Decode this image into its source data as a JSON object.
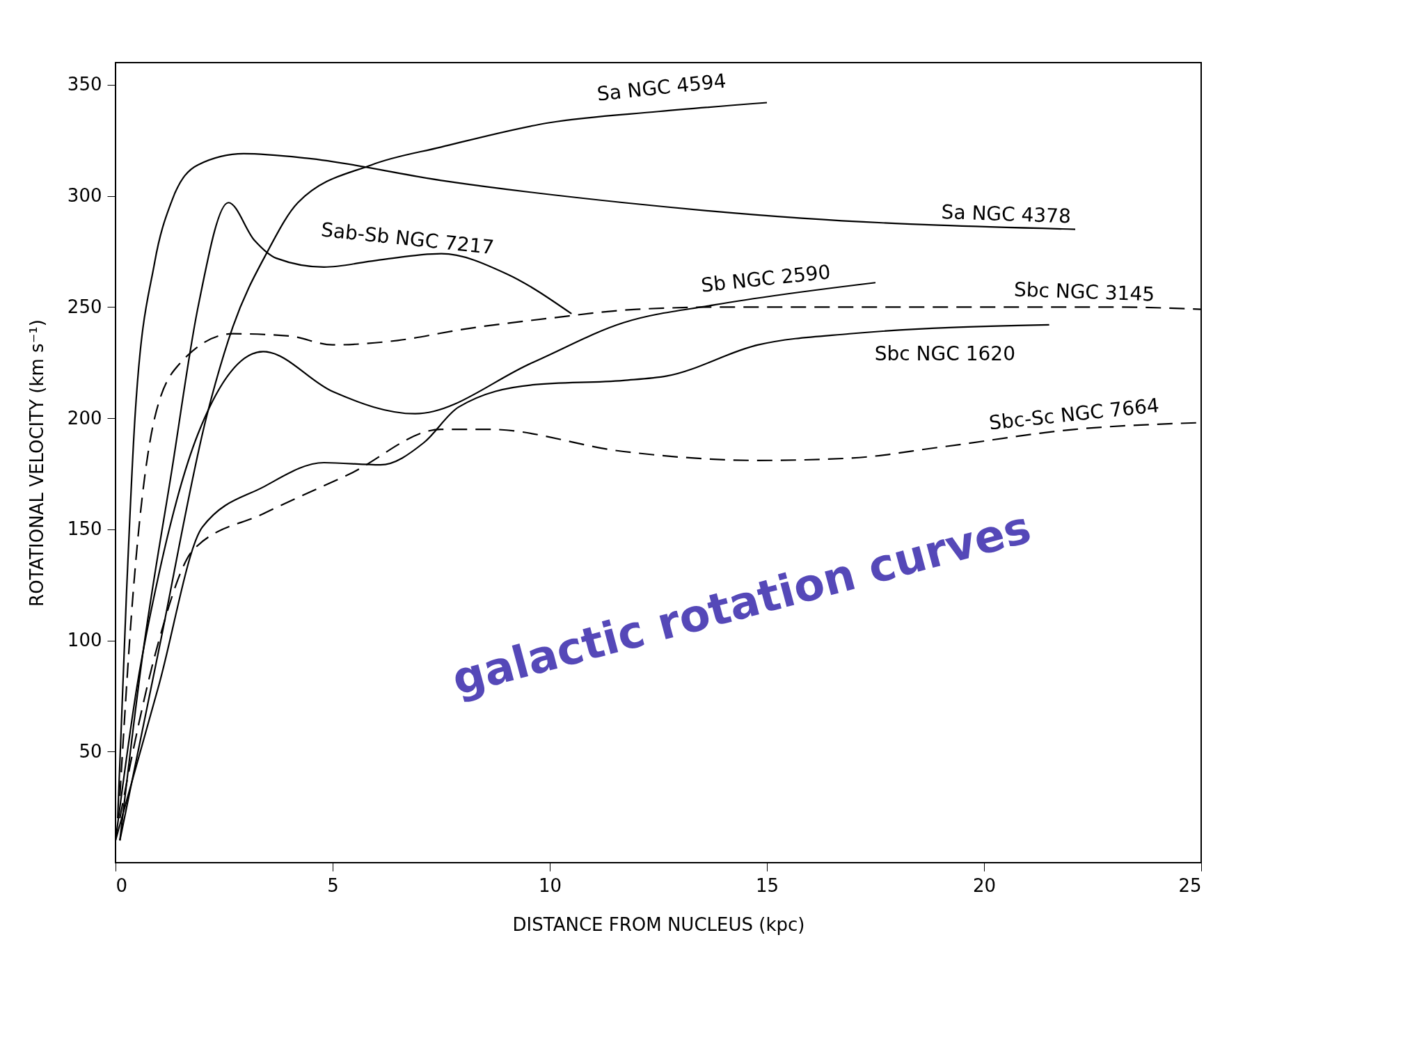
{
  "chart_data": {
    "type": "line",
    "xlabel": "DISTANCE  FROM NUCLEUS (kpc)",
    "ylabel": "ROTATIONAL VELOCITY (km s⁻¹)",
    "xlim": [
      0,
      25
    ],
    "ylim": [
      0,
      360
    ],
    "xticks": [
      0,
      5,
      10,
      15,
      20,
      25
    ],
    "yticks": [
      50,
      100,
      150,
      200,
      250,
      300,
      350
    ],
    "grid": false,
    "marker": "none",
    "series": [
      {
        "name": "Sa  NGC 4594",
        "color": "#000000",
        "line_style": "solid",
        "x": [
          0.1,
          1,
          2.1,
          2.7,
          3.5,
          4.2,
          5.9,
          7.5,
          10,
          12.5,
          15
        ],
        "values": [
          10,
          96,
          201,
          241,
          275,
          297,
          314,
          322,
          333,
          338,
          342
        ]
      },
      {
        "name": "Sa  NGC 4378",
        "color": "#000000",
        "line_style": "solid",
        "x": [
          0.05,
          0.25,
          0.45,
          0.9,
          1.3,
          1.9,
          2.95,
          4.4,
          7.5,
          11.7,
          15.8,
          22.1
        ],
        "values": [
          20,
          120,
          201,
          270,
          298,
          314,
          319,
          317,
          307,
          297,
          290,
          285
        ]
      },
      {
        "name": "Sab-Sb  NGC 7217",
        "color": "#000000",
        "line_style": "solid",
        "x": [
          0.1,
          0.6,
          1.3,
          1.9,
          2.6,
          3.2,
          3.7,
          4.8,
          6,
          7.5,
          9,
          10.5
        ],
        "values": [
          10,
          90,
          177,
          250,
          297,
          280,
          272,
          268,
          271,
          274,
          265,
          247
        ]
      },
      {
        "name": "Sb  NGC 2590",
        "color": "#000000",
        "line_style": "solid",
        "x": [
          0,
          0.5,
          1,
          1.9,
          3.4,
          5,
          6.9,
          9.6,
          11.7,
          13.8,
          17.5
        ],
        "values": [
          10,
          80,
          130,
          193,
          230,
          212,
          202,
          225,
          243,
          251,
          261
        ]
      },
      {
        "name": "Sbc  NGC 3145",
        "color": "#000000",
        "line_style": "dashed",
        "x": [
          0.1,
          0.4,
          0.9,
          1.5,
          2.7,
          4,
          5,
          6.5,
          8,
          10,
          12,
          14,
          17,
          20,
          23,
          25
        ],
        "values": [
          30,
          120,
          200,
          225,
          238,
          237,
          233,
          235,
          240,
          245,
          249,
          250,
          250,
          250,
          250,
          249
        ]
      },
      {
        "name": "Sbc  NGC 1620",
        "color": "#000000",
        "line_style": "solid",
        "x": [
          0,
          1,
          2,
          3.4,
          4.8,
          6.1,
          7.1,
          7.9,
          9.6,
          11.7,
          12.7,
          14.8,
          16.9,
          21.5
        ],
        "values": [
          10,
          80,
          151,
          169,
          180,
          179,
          189,
          205,
          215,
          217,
          219,
          233,
          238,
          242
        ]
      },
      {
        "name": "Sbc-Sc  NGC 7664",
        "color": "#000000",
        "line_style": "dashed",
        "x": [
          0.1,
          0.4,
          1,
          1.8,
          3.4,
          5.4,
          7.5,
          8.6,
          11.7,
          14.8,
          16.9,
          19,
          22.1,
          25
        ],
        "values": [
          20,
          50,
          100,
          141,
          157,
          175,
          195,
          195,
          185,
          181,
          182,
          187,
          195,
          198
        ]
      }
    ],
    "annotations": [
      "galactic rotation curves"
    ]
  }
}
